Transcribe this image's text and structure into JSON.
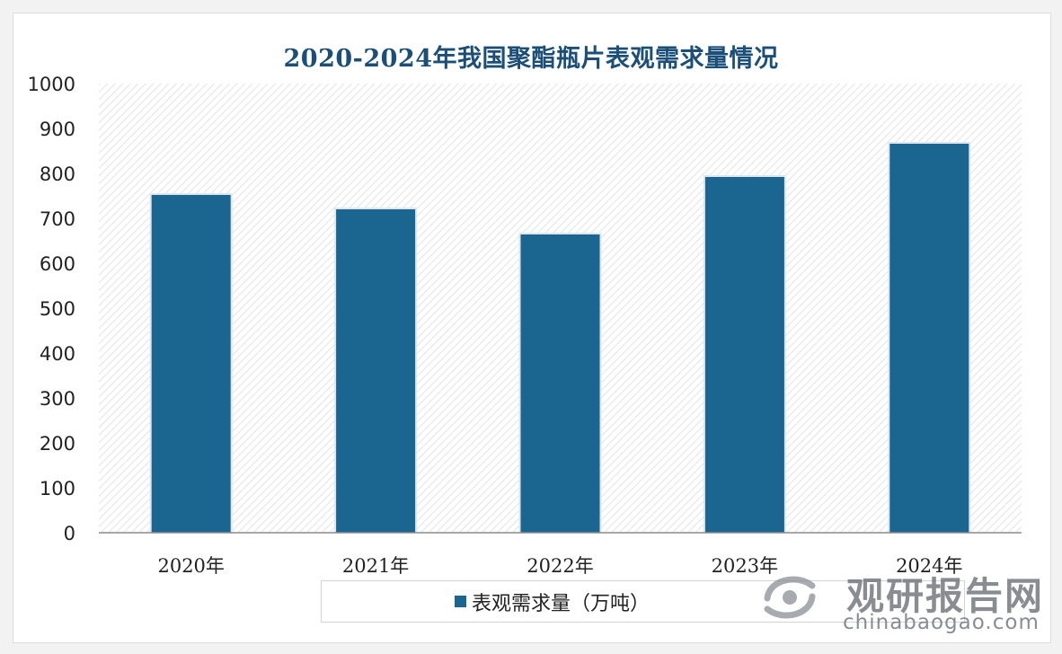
{
  "chart_data": {
    "type": "bar",
    "title": "2020-2024年我国聚酯瓶片表观需求量情况",
    "categories": [
      "2020年",
      "2021年",
      "2022年",
      "2023年",
      "2024年"
    ],
    "series": [
      {
        "name": "表观需求量（万吨）",
        "values": [
          752,
          720,
          664,
          792,
          866
        ]
      }
    ],
    "ylim": [
      0,
      1000
    ],
    "yticks": [
      0,
      100,
      200,
      300,
      400,
      500,
      600,
      700,
      800,
      900,
      1000
    ],
    "grid": false,
    "legend": "bottom",
    "colors": {
      "bar": "#1b6691",
      "title": "#1b4f78"
    }
  },
  "watermark": {
    "name_cn": "观研报告网",
    "domain": "chinabaogao.com"
  }
}
